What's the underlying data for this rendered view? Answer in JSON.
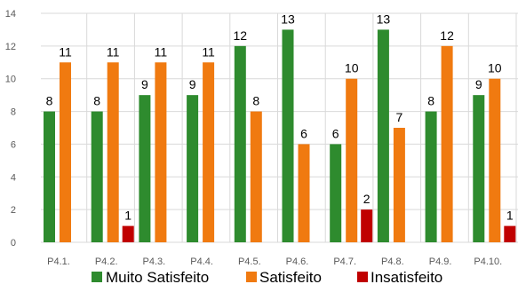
{
  "chart_data": {
    "type": "bar",
    "title": "",
    "xlabel": "",
    "ylabel": "",
    "ylim": [
      0,
      14
    ],
    "yticks": [
      0,
      2,
      4,
      6,
      8,
      10,
      12,
      14
    ],
    "grid": true,
    "legend_position": "bottom",
    "categories": [
      "P4.1.",
      "P4.2.",
      "P4.3.",
      "P4.4.",
      "P4.5.",
      "P4.6.",
      "P4.7.",
      "P4.8.",
      "P4.9.",
      "P4.10."
    ],
    "series": [
      {
        "name": "Muito Satisfeito",
        "color": "#2e8b2e",
        "values": [
          8,
          8,
          9,
          9,
          12,
          13,
          6,
          13,
          8,
          9
        ]
      },
      {
        "name": "Satisfeito",
        "color": "#f07a10",
        "values": [
          11,
          11,
          11,
          11,
          8,
          6,
          10,
          7,
          12,
          10
        ]
      },
      {
        "name": "Insatisfeito",
        "color": "#c00000",
        "values": [
          null,
          1,
          null,
          null,
          null,
          null,
          2,
          null,
          null,
          1
        ]
      }
    ]
  }
}
